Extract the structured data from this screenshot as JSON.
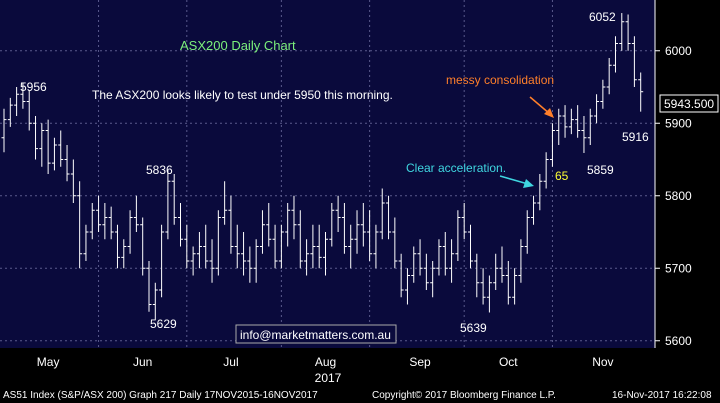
{
  "chart_data": {
    "type": "ohlc",
    "title": "ASX200 Daily Chart",
    "subtitle": "The ASX200 looks likely to test under 5950 this morning.",
    "ylim": [
      5590,
      6070
    ],
    "yticks": [
      5600,
      5700,
      5800,
      5900,
      6000
    ],
    "y_tick_labels": [
      "5600",
      "5700",
      "5800",
      "5900",
      "6000"
    ],
    "month_labels": [
      "May",
      "Jun",
      "Jul",
      "Aug",
      "Sep",
      "Oct",
      "Nov"
    ],
    "year_label": "2017",
    "last_price": 5943.5,
    "last_price_label": "5943.500",
    "grid": true,
    "colors": {
      "background": "#0a0a3c",
      "bars": "#ffffff",
      "grid": "#5a5a8c",
      "title": "#7cf07c",
      "annotation_orange": "#ff7f2a",
      "annotation_cyan": "#3fd6e0",
      "annotation_yellow": "#ffff33"
    },
    "annotations": [
      {
        "text": "5956",
        "kind": "high",
        "value": 5956
      },
      {
        "text": "5836",
        "kind": "high",
        "value": 5836
      },
      {
        "text": "5629",
        "kind": "low",
        "value": 5629
      },
      {
        "text": "5639",
        "kind": "low",
        "value": 5639
      },
      {
        "text": "5859",
        "kind": "low",
        "value": 5859
      },
      {
        "text": "6052",
        "kind": "high",
        "value": 6052
      },
      {
        "text": "5916",
        "kind": "low",
        "value": 5916
      },
      {
        "text": "65",
        "kind": "note",
        "value": 65
      },
      {
        "text": "messy consolidation",
        "kind": "callout"
      },
      {
        "text": "Clear acceleration.",
        "kind": "callout"
      }
    ],
    "ohlc": [
      [
        5880,
        5920,
        5860,
        5905
      ],
      [
        5905,
        5935,
        5895,
        5925
      ],
      [
        5925,
        5950,
        5910,
        5940
      ],
      [
        5940,
        5956,
        5920,
        5930
      ],
      [
        5930,
        5945,
        5890,
        5900
      ],
      [
        5900,
        5910,
        5850,
        5865
      ],
      [
        5865,
        5900,
        5840,
        5890
      ],
      [
        5890,
        5905,
        5830,
        5845
      ],
      [
        5845,
        5880,
        5835,
        5870
      ],
      [
        5870,
        5890,
        5840,
        5850
      ],
      [
        5850,
        5870,
        5820,
        5830
      ],
      [
        5830,
        5850,
        5790,
        5800
      ],
      [
        5800,
        5820,
        5700,
        5720
      ],
      [
        5720,
        5760,
        5710,
        5750
      ],
      [
        5750,
        5790,
        5740,
        5780
      ],
      [
        5780,
        5800,
        5750,
        5760
      ],
      [
        5760,
        5790,
        5740,
        5770
      ],
      [
        5770,
        5785,
        5740,
        5750
      ],
      [
        5750,
        5760,
        5700,
        5715
      ],
      [
        5715,
        5740,
        5700,
        5730
      ],
      [
        5730,
        5780,
        5720,
        5770
      ],
      [
        5770,
        5800,
        5750,
        5760
      ],
      [
        5760,
        5770,
        5690,
        5700
      ],
      [
        5700,
        5710,
        5640,
        5650
      ],
      [
        5650,
        5680,
        5629,
        5670
      ],
      [
        5670,
        5760,
        5660,
        5750
      ],
      [
        5750,
        5836,
        5740,
        5820
      ],
      [
        5820,
        5830,
        5760,
        5770
      ],
      [
        5770,
        5790,
        5730,
        5740
      ],
      [
        5740,
        5760,
        5700,
        5710
      ],
      [
        5710,
        5730,
        5690,
        5720
      ],
      [
        5720,
        5750,
        5700,
        5730
      ],
      [
        5730,
        5760,
        5700,
        5710
      ],
      [
        5710,
        5740,
        5680,
        5700
      ],
      [
        5700,
        5780,
        5690,
        5770
      ],
      [
        5770,
        5820,
        5760,
        5780
      ],
      [
        5780,
        5800,
        5720,
        5730
      ],
      [
        5730,
        5760,
        5700,
        5720
      ],
      [
        5720,
        5750,
        5690,
        5710
      ],
      [
        5710,
        5730,
        5680,
        5700
      ],
      [
        5700,
        5740,
        5680,
        5730
      ],
      [
        5730,
        5780,
        5720,
        5760
      ],
      [
        5760,
        5790,
        5730,
        5740
      ],
      [
        5740,
        5760,
        5700,
        5710
      ],
      [
        5710,
        5760,
        5700,
        5750
      ],
      [
        5750,
        5790,
        5730,
        5780
      ],
      [
        5780,
        5800,
        5740,
        5760
      ],
      [
        5760,
        5780,
        5700,
        5710
      ],
      [
        5710,
        5740,
        5690,
        5720
      ],
      [
        5720,
        5760,
        5700,
        5730
      ],
      [
        5730,
        5760,
        5700,
        5715
      ],
      [
        5715,
        5750,
        5690,
        5740
      ],
      [
        5740,
        5790,
        5730,
        5780
      ],
      [
        5780,
        5800,
        5750,
        5770
      ],
      [
        5770,
        5790,
        5720,
        5730
      ],
      [
        5730,
        5760,
        5700,
        5740
      ],
      [
        5740,
        5780,
        5720,
        5760
      ],
      [
        5760,
        5790,
        5730,
        5750
      ],
      [
        5750,
        5780,
        5710,
        5720
      ],
      [
        5720,
        5760,
        5700,
        5750
      ],
      [
        5750,
        5810,
        5740,
        5790
      ],
      [
        5790,
        5800,
        5740,
        5750
      ],
      [
        5750,
        5770,
        5700,
        5710
      ],
      [
        5710,
        5720,
        5660,
        5670
      ],
      [
        5670,
        5700,
        5650,
        5690
      ],
      [
        5690,
        5730,
        5680,
        5720
      ],
      [
        5720,
        5740,
        5690,
        5700
      ],
      [
        5700,
        5720,
        5670,
        5680
      ],
      [
        5680,
        5710,
        5660,
        5700
      ],
      [
        5700,
        5740,
        5690,
        5730
      ],
      [
        5730,
        5750,
        5690,
        5700
      ],
      [
        5700,
        5740,
        5680,
        5720
      ],
      [
        5720,
        5780,
        5710,
        5770
      ],
      [
        5770,
        5790,
        5740,
        5750
      ],
      [
        5750,
        5760,
        5700,
        5710
      ],
      [
        5710,
        5720,
        5660,
        5680
      ],
      [
        5680,
        5700,
        5650,
        5660
      ],
      [
        5660,
        5690,
        5639,
        5680
      ],
      [
        5680,
        5720,
        5670,
        5700
      ],
      [
        5700,
        5730,
        5680,
        5690
      ],
      [
        5690,
        5710,
        5650,
        5660
      ],
      [
        5660,
        5700,
        5650,
        5690
      ],
      [
        5690,
        5740,
        5680,
        5730
      ],
      [
        5730,
        5780,
        5720,
        5770
      ],
      [
        5770,
        5800,
        5760,
        5790
      ],
      [
        5790,
        5830,
        5780,
        5820
      ],
      [
        5820,
        5860,
        5810,
        5850
      ],
      [
        5850,
        5900,
        5840,
        5890
      ],
      [
        5890,
        5920,
        5870,
        5910
      ],
      [
        5910,
        5925,
        5880,
        5895
      ],
      [
        5895,
        5920,
        5885,
        5905
      ],
      [
        5905,
        5925,
        5880,
        5890
      ],
      [
        5890,
        5910,
        5859,
        5880
      ],
      [
        5880,
        5920,
        5870,
        5910
      ],
      [
        5910,
        5940,
        5900,
        5930
      ],
      [
        5930,
        5960,
        5920,
        5950
      ],
      [
        5950,
        5990,
        5940,
        5980
      ],
      [
        5980,
        6020,
        5970,
        6010
      ],
      [
        6010,
        6052,
        6000,
        6040
      ],
      [
        6040,
        6050,
        6000,
        6010
      ],
      [
        6010,
        6020,
        5950,
        5960
      ],
      [
        5960,
        5970,
        5916,
        5943.5
      ]
    ]
  }
}
